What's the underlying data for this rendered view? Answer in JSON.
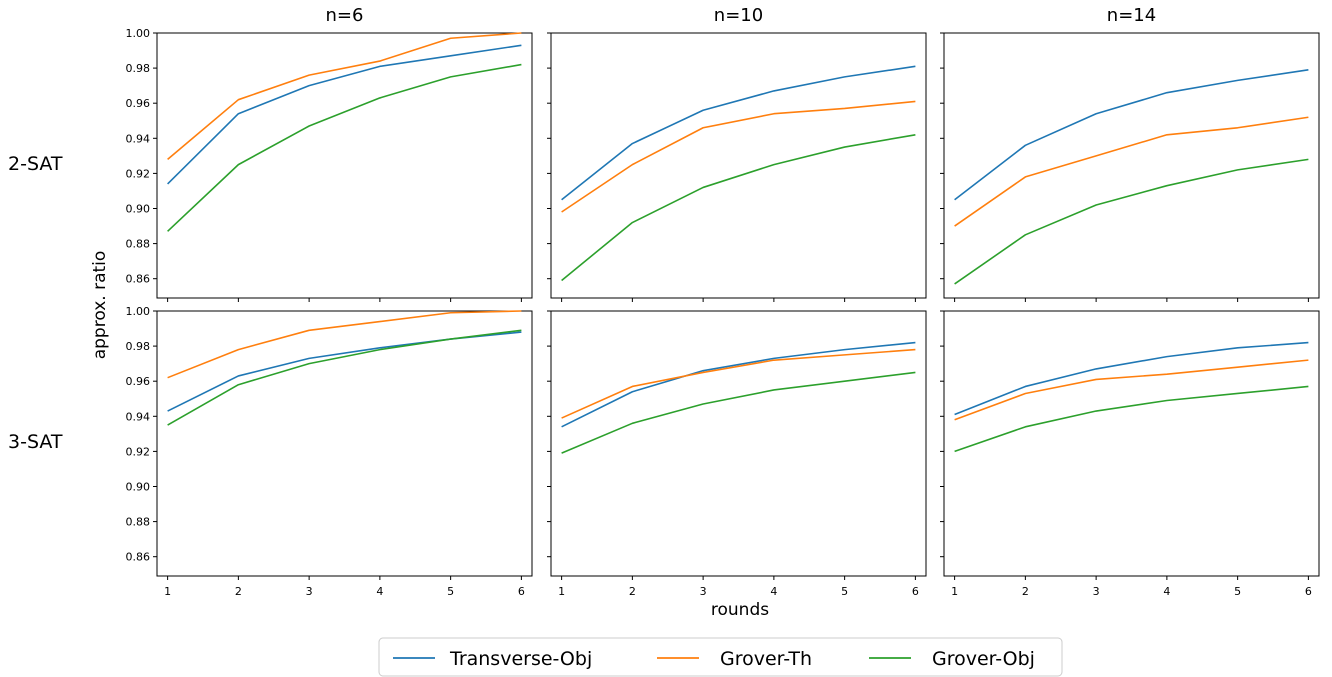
{
  "chart_data": {
    "type": "line",
    "layout": "grid 2 rows x 3 columns, shared axes",
    "column_titles": [
      "n=6",
      "n=10",
      "n=14"
    ],
    "row_labels": [
      "2-SAT",
      "3-SAT"
    ],
    "xlabel": "rounds",
    "ylabel": "approx. ratio",
    "x": [
      1,
      2,
      3,
      4,
      5,
      6
    ],
    "xlim": [
      0.85,
      6.15
    ],
    "ylim": [
      0.849,
      1.0
    ],
    "yticks": [
      0.86,
      0.88,
      0.9,
      0.92,
      0.94,
      0.96,
      0.98,
      1.0
    ],
    "ytick_labels": [
      "0.86",
      "0.88",
      "0.90",
      "0.92",
      "0.94",
      "0.96",
      "0.98",
      "1.00"
    ],
    "xtick_labels": [
      "1",
      "2",
      "3",
      "4",
      "5",
      "6"
    ],
    "legend": {
      "placement": "bottom-center",
      "entries": [
        {
          "label": "Transverse-Obj",
          "color": "#1f77b4"
        },
        {
          "label": "Grover-Th",
          "color": "#ff7f0e"
        },
        {
          "label": "Grover-Obj",
          "color": "#2ca02c"
        }
      ]
    },
    "panels": [
      {
        "row": 0,
        "col": 0,
        "series": [
          {
            "name": "Transverse-Obj",
            "values": [
              0.914,
              0.954,
              0.97,
              0.981,
              0.987,
              0.993
            ]
          },
          {
            "name": "Grover-Th",
            "values": [
              0.928,
              0.962,
              0.976,
              0.984,
              0.997,
              1.0
            ]
          },
          {
            "name": "Grover-Obj",
            "values": [
              0.887,
              0.925,
              0.947,
              0.963,
              0.975,
              0.982
            ]
          }
        ]
      },
      {
        "row": 0,
        "col": 1,
        "series": [
          {
            "name": "Transverse-Obj",
            "values": [
              0.905,
              0.937,
              0.956,
              0.967,
              0.975,
              0.981
            ]
          },
          {
            "name": "Grover-Th",
            "values": [
              0.898,
              0.925,
              0.946,
              0.954,
              0.957,
              0.961
            ]
          },
          {
            "name": "Grover-Obj",
            "values": [
              0.859,
              0.892,
              0.912,
              0.925,
              0.935,
              0.942
            ]
          }
        ]
      },
      {
        "row": 0,
        "col": 2,
        "series": [
          {
            "name": "Transverse-Obj",
            "values": [
              0.905,
              0.936,
              0.954,
              0.966,
              0.973,
              0.979
            ]
          },
          {
            "name": "Grover-Th",
            "values": [
              0.89,
              0.918,
              0.93,
              0.942,
              0.946,
              0.952
            ]
          },
          {
            "name": "Grover-Obj",
            "values": [
              0.857,
              0.885,
              0.902,
              0.913,
              0.922,
              0.928
            ]
          }
        ]
      },
      {
        "row": 1,
        "col": 0,
        "series": [
          {
            "name": "Transverse-Obj",
            "values": [
              0.943,
              0.963,
              0.973,
              0.979,
              0.984,
              0.988
            ]
          },
          {
            "name": "Grover-Th",
            "values": [
              0.962,
              0.978,
              0.989,
              0.994,
              0.999,
              1.0
            ]
          },
          {
            "name": "Grover-Obj",
            "values": [
              0.935,
              0.958,
              0.97,
              0.978,
              0.984,
              0.989
            ]
          }
        ]
      },
      {
        "row": 1,
        "col": 1,
        "series": [
          {
            "name": "Transverse-Obj",
            "values": [
              0.934,
              0.954,
              0.966,
              0.973,
              0.978,
              0.982
            ]
          },
          {
            "name": "Grover-Th",
            "values": [
              0.939,
              0.957,
              0.965,
              0.972,
              0.975,
              0.978
            ]
          },
          {
            "name": "Grover-Obj",
            "values": [
              0.919,
              0.936,
              0.947,
              0.955,
              0.96,
              0.965
            ]
          }
        ]
      },
      {
        "row": 1,
        "col": 2,
        "series": [
          {
            "name": "Transverse-Obj",
            "values": [
              0.941,
              0.957,
              0.967,
              0.974,
              0.979,
              0.982
            ]
          },
          {
            "name": "Grover-Th",
            "values": [
              0.938,
              0.953,
              0.961,
              0.964,
              0.968,
              0.972
            ]
          },
          {
            "name": "Grover-Obj",
            "values": [
              0.92,
              0.934,
              0.943,
              0.949,
              0.953,
              0.957
            ]
          }
        ]
      }
    ]
  }
}
